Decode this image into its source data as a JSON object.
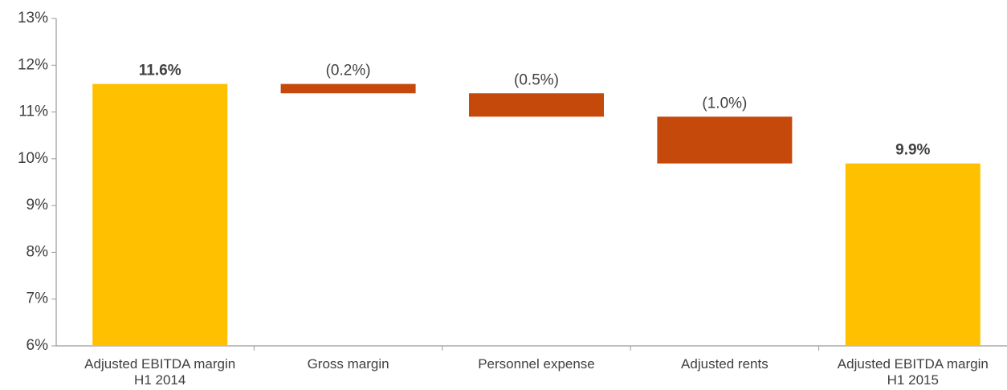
{
  "chart_data": {
    "type": "waterfall",
    "categories": [
      [
        "Adjusted EBITDA margin",
        "H1 2014"
      ],
      [
        "Gross margin"
      ],
      [
        "Personnel expense"
      ],
      [
        "Adjusted rents"
      ],
      [
        "Adjusted EBITDA margin",
        "H1 2015"
      ]
    ],
    "values": [
      11.6,
      -0.2,
      -0.5,
      -1.0,
      9.9
    ],
    "value_labels": [
      "11.6%",
      "(0.2%)",
      "(0.5%)",
      "(1.0%)",
      "9.9%"
    ],
    "colors": [
      "#FFC000",
      "#C5490A",
      "#C5490A",
      "#C5490A",
      "#FFC000"
    ],
    "ylim": [
      6,
      13
    ],
    "yticks": [
      {
        "value": 6,
        "label": "6%"
      },
      {
        "value": 7,
        "label": "7%"
      },
      {
        "value": 8,
        "label": "8%"
      },
      {
        "value": 9,
        "label": "9%"
      },
      {
        "value": 10,
        "label": "10%"
      },
      {
        "value": 11,
        "label": "11%"
      },
      {
        "value": 12,
        "label": "12%"
      },
      {
        "value": 13,
        "label": "13%"
      }
    ]
  }
}
